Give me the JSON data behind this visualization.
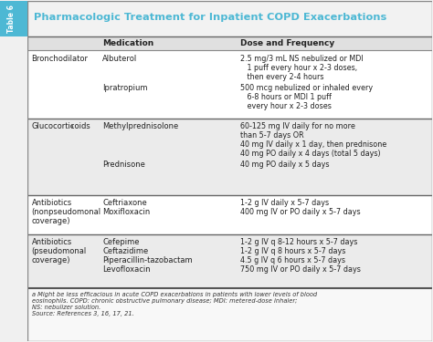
{
  "title": "Pharmacologic Treatment for Inpatient COPD Exacerbations",
  "table_label": "Table 6",
  "title_color": "#4db8d4",
  "col_header_medication": "Medication",
  "col_header_dose": "Dose and Frequency",
  "label_bg": "#4db8d4",
  "label_text_color": "#ffffff",
  "row_bg_light": "#ffffff",
  "row_bg_dark": "#ebebeb",
  "header_bg": "#e0e0e0",
  "footnote": "a Might be less efficacious in acute COPD exacerbations in patients with lower levels of blood\neosinophils. COPD: chronic obstructive pulmonary disease; MDI: metered-dose inhaler;\nNS: nebulizer solution.\nSource: References 3, 16, 17, 21."
}
